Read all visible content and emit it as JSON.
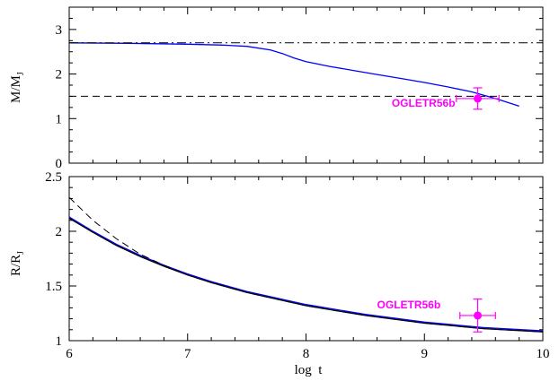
{
  "chart_data": [
    {
      "type": "line",
      "panel": "top",
      "xlabel": "",
      "ylabel": "M/M",
      "ylabel_sub": "J",
      "xlim": [
        6,
        10
      ],
      "ylim": [
        0,
        3.5
      ],
      "xticks_major": [
        6,
        7,
        8,
        9,
        10
      ],
      "yticks_major": [
        0,
        1,
        2,
        3
      ],
      "ytick_labels": [
        "0",
        "1",
        "2",
        "3"
      ],
      "series": [
        {
          "style": "solid",
          "color": "#0000ff",
          "x": [
            6.0,
            6.5,
            7.0,
            7.3,
            7.5,
            7.7,
            7.8,
            7.9,
            8.0,
            8.2,
            8.4,
            8.6,
            8.8,
            9.0,
            9.2,
            9.4,
            9.6,
            9.8
          ],
          "y": [
            2.7,
            2.69,
            2.67,
            2.65,
            2.62,
            2.54,
            2.46,
            2.36,
            2.28,
            2.17,
            2.08,
            1.99,
            1.9,
            1.81,
            1.71,
            1.6,
            1.45,
            1.28
          ]
        },
        {
          "style": "dotdash",
          "color": "#000000",
          "x": [
            6.0,
            10.0
          ],
          "y": [
            2.7,
            2.7
          ]
        },
        {
          "style": "dashed",
          "color": "#000000",
          "x": [
            6.0,
            10.0
          ],
          "y": [
            1.5,
            1.5
          ]
        }
      ],
      "annotation": {
        "text": "OGLETR56b",
        "color": "#ff00ff",
        "point": {
          "x": 9.45,
          "y": 1.45,
          "xerr": 0.18,
          "yerr": 0.24
        }
      }
    },
    {
      "type": "line",
      "panel": "bottom",
      "xlabel": "log  t",
      "ylabel": "R/R",
      "ylabel_sub": "J",
      "xlim": [
        6,
        10
      ],
      "ylim": [
        1,
        2.5
      ],
      "xticks_major": [
        6,
        7,
        8,
        9,
        10
      ],
      "xtick_labels": [
        "6",
        "7",
        "8",
        "9",
        "10"
      ],
      "yticks_major": [
        1,
        1.5,
        2,
        2.5
      ],
      "ytick_labels": [
        "1",
        "1.5",
        "2",
        "2.5"
      ],
      "series": [
        {
          "style": "solid",
          "color": "#0000ff",
          "x": [
            6.0,
            6.2,
            6.4,
            6.6,
            6.8,
            7.0,
            7.2,
            7.5,
            8.0,
            8.5,
            9.0,
            9.5,
            10.0
          ],
          "y": [
            2.13,
            2.0,
            1.88,
            1.78,
            1.69,
            1.61,
            1.54,
            1.45,
            1.33,
            1.24,
            1.17,
            1.12,
            1.09
          ]
        },
        {
          "style": "solid",
          "color": "#000000",
          "x": [
            6.0,
            6.2,
            6.4,
            6.6,
            6.8,
            7.0,
            7.2,
            7.5,
            8.0,
            8.5,
            9.0,
            9.5,
            10.0
          ],
          "y": [
            2.12,
            1.99,
            1.87,
            1.77,
            1.68,
            1.6,
            1.53,
            1.44,
            1.32,
            1.23,
            1.16,
            1.11,
            1.08
          ]
        },
        {
          "style": "dashed",
          "color": "#000000",
          "x": [
            6.0,
            6.2,
            6.4,
            6.6,
            6.8,
            7.0,
            7.2,
            7.5,
            8.0,
            8.5,
            9.0,
            9.5,
            10.0
          ],
          "y": [
            2.31,
            2.1,
            1.93,
            1.79,
            1.69,
            1.6,
            1.53,
            1.44,
            1.32,
            1.23,
            1.16,
            1.11,
            1.08
          ]
        }
      ],
      "annotation": {
        "text": "OGLETR56b",
        "color": "#ff00ff",
        "point": {
          "x": 9.45,
          "y": 1.23,
          "xerr": 0.15,
          "yerr": 0.15
        }
      }
    }
  ]
}
